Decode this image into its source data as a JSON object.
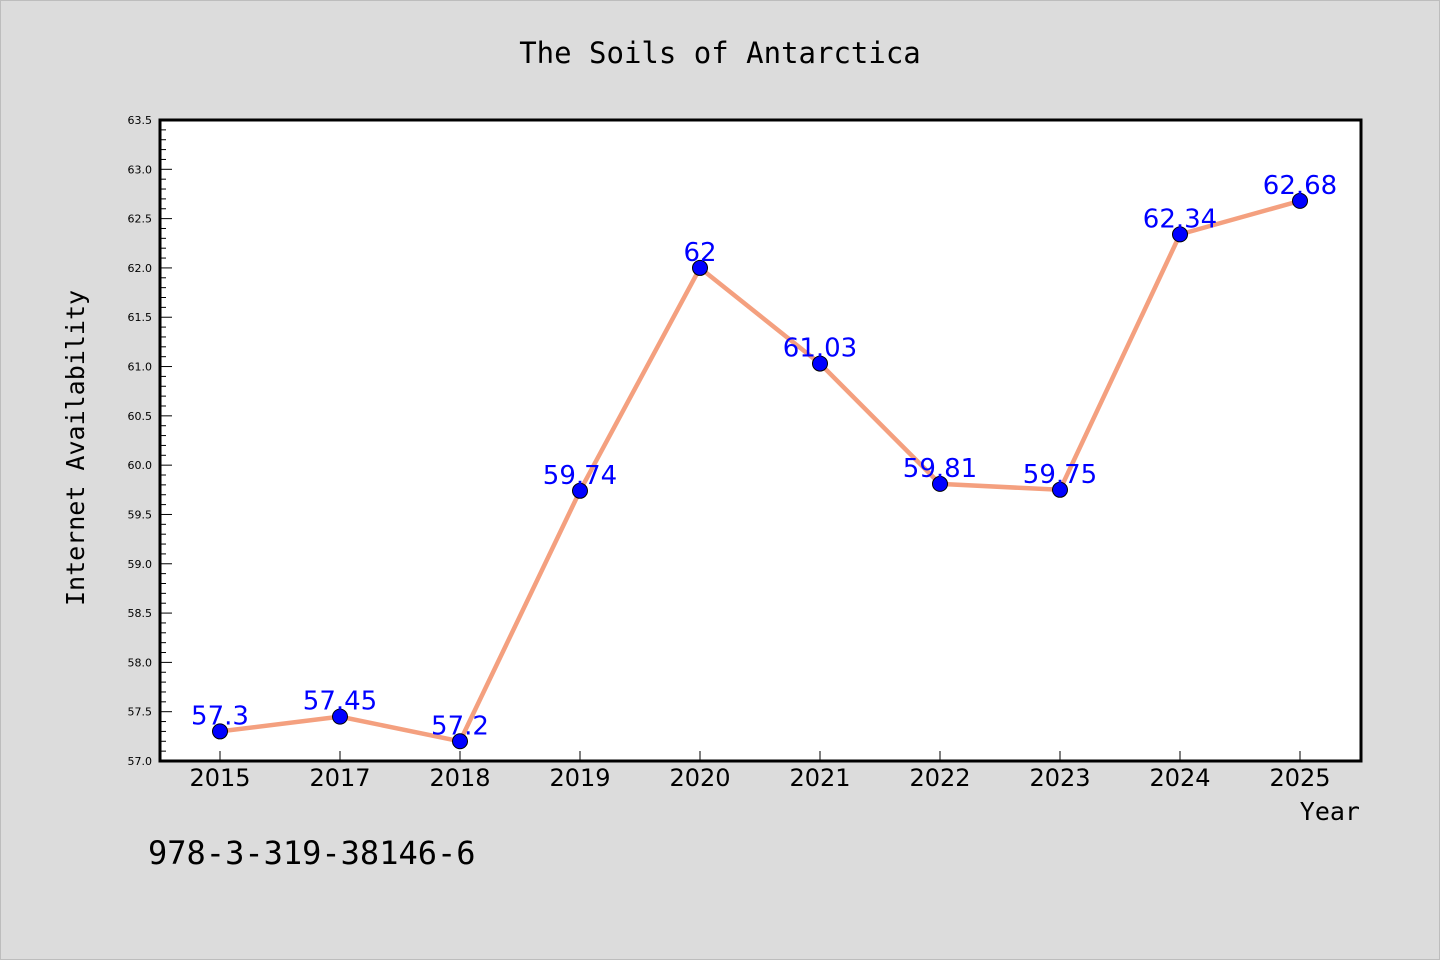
{
  "chart_data": {
    "type": "line",
    "title": "The Soils of Antarctica",
    "xlabel": "Year",
    "ylabel": "Internet Availability",
    "categories": [
      "2015",
      "2017",
      "2018",
      "2019",
      "2020",
      "2021",
      "2022",
      "2023",
      "2024",
      "2025"
    ],
    "series": [
      {
        "values": [
          57.3,
          57.45,
          57.2,
          59.74,
          62,
          61.03,
          59.81,
          59.75,
          62.34,
          62.68
        ]
      }
    ],
    "data_labels": [
      "57.3",
      "57.45",
      "57.2",
      "59.74",
      "62",
      "61.03",
      "59.81",
      "59.75",
      "62.34",
      "62.68"
    ],
    "ylim": [
      57.0,
      63.5
    ],
    "yticks": [
      "57.0",
      "57.5",
      "58.0",
      "58.5",
      "59.0",
      "59.5",
      "60.0",
      "60.5",
      "61.0",
      "61.5",
      "62.0",
      "62.5",
      "63.0",
      "63.5"
    ],
    "grid": false,
    "line_color": "#f4a07f",
    "marker_color": "#0000ff"
  },
  "footer_text": "978-3-319-38146-6"
}
